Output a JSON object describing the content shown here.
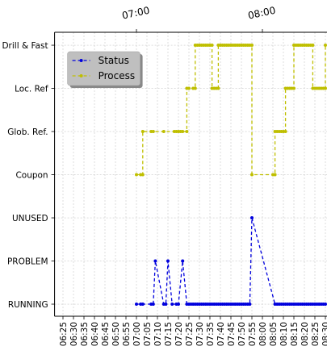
{
  "chart_data": {
    "type": "line",
    "xlim": [
      "06:21",
      "08:30"
    ],
    "xticks": [
      "06:25",
      "06:30",
      "06:35",
      "06:40",
      "06:45",
      "06:50",
      "06:55",
      "07:00",
      "07:05",
      "07:10",
      "07:15",
      "07:20",
      "07:25",
      "07:30",
      "07:35",
      "07:40",
      "07:45",
      "07:50",
      "07:55",
      "08:00",
      "08:05",
      "08:10",
      "08:15",
      "08:20",
      "08:25",
      "08:30"
    ],
    "x2ticks": [
      "07:00",
      "08:00"
    ],
    "ylim": [
      -0.28,
      6.3
    ],
    "yticks": [
      {
        "value": 0,
        "label": "RUNNING"
      },
      {
        "value": 1,
        "label": "PROBLEM"
      },
      {
        "value": 2,
        "label": "UNUSED"
      },
      {
        "value": 3,
        "label": "Coupon"
      },
      {
        "value": 4,
        "label": "Glob. Ref."
      },
      {
        "value": 5,
        "label": "Loc. Ref"
      },
      {
        "value": 6,
        "label": "Drill & Fast"
      }
    ],
    "grid": true,
    "legend": "upper left",
    "series": [
      {
        "name": "Status",
        "color": "#0000dd",
        "x": [
          "07:00",
          "07:02",
          "07:03",
          "07:07",
          "07:08",
          "07:09",
          "07:13",
          "07:14",
          "07:15",
          "07:17",
          "07:19",
          "07:20",
          "07:22",
          "07:24",
          "07:25",
          "07:26",
          "07:27",
          "07:28",
          "07:29",
          "07:30",
          "07:31",
          "07:32",
          "07:33",
          "07:34",
          "07:35",
          "07:36",
          "07:37",
          "07:38",
          "07:39",
          "07:40",
          "07:41",
          "07:42",
          "07:43",
          "07:44",
          "07:45",
          "07:46",
          "07:47",
          "07:48",
          "07:49",
          "07:50",
          "07:51",
          "07:52",
          "07:53",
          "07:54",
          "07:55",
          "08:06",
          "08:07",
          "08:08",
          "08:09",
          "08:10",
          "08:11",
          "08:12",
          "08:13",
          "08:14",
          "08:15",
          "08:16",
          "08:17",
          "08:18",
          "08:19",
          "08:20",
          "08:21",
          "08:22",
          "08:23",
          "08:24",
          "08:25",
          "08:26",
          "08:27",
          "08:28",
          "08:29",
          "08:30"
        ],
        "values": [
          0,
          0,
          0,
          0,
          0,
          1,
          0,
          0,
          1,
          0,
          0,
          0,
          1,
          0,
          0,
          0,
          0,
          0,
          0,
          0,
          0,
          0,
          0,
          0,
          0,
          0,
          0,
          0,
          0,
          0,
          0,
          0,
          0,
          0,
          0,
          0,
          0,
          0,
          0,
          0,
          0,
          0,
          0,
          0,
          2,
          0,
          0,
          0,
          0,
          0,
          0,
          0,
          0,
          0,
          0,
          0,
          0,
          0,
          0,
          0,
          0,
          0,
          0,
          0,
          0,
          0,
          0,
          0,
          0,
          0
        ]
      },
      {
        "name": "Process",
        "color": "#bfbf00",
        "x": [
          "07:00",
          "07:02",
          "07:03",
          "07:03",
          "07:07",
          "07:08",
          "07:13",
          "07:18",
          "07:19",
          "07:20",
          "07:21",
          "07:22",
          "07:24",
          "07:24",
          "07:25",
          "07:27",
          "07:28",
          "07:28",
          "07:29",
          "07:30",
          "07:31",
          "07:32",
          "07:33",
          "07:34",
          "07:35",
          "07:36",
          "07:36",
          "07:37",
          "07:38",
          "07:39",
          "07:39",
          "07:40",
          "07:41",
          "07:42",
          "07:43",
          "07:44",
          "07:45",
          "07:46",
          "07:47",
          "07:48",
          "07:49",
          "07:50",
          "07:51",
          "07:52",
          "07:53",
          "07:54",
          "07:55",
          "07:55",
          "08:05",
          "08:06",
          "08:06",
          "08:07",
          "08:08",
          "08:09",
          "08:10",
          "08:11",
          "08:11",
          "08:12",
          "08:13",
          "08:14",
          "08:15",
          "08:15",
          "08:16",
          "08:17",
          "08:18",
          "08:19",
          "08:20",
          "08:21",
          "08:22",
          "08:23",
          "08:24",
          "08:24",
          "08:25",
          "08:26",
          "08:27",
          "08:28",
          "08:29",
          "08:30",
          "08:30"
        ],
        "values": [
          3,
          3,
          3,
          4,
          4,
          4,
          4,
          4,
          4,
          4,
          4,
          4,
          4,
          5,
          5,
          5,
          5,
          6,
          6,
          6,
          6,
          6,
          6,
          6,
          6,
          6,
          5,
          5,
          5,
          5,
          6,
          6,
          6,
          6,
          6,
          6,
          6,
          6,
          6,
          6,
          6,
          6,
          6,
          6,
          6,
          6,
          6,
          3,
          3,
          3,
          4,
          4,
          4,
          4,
          4,
          4,
          5,
          5,
          5,
          5,
          5,
          6,
          6,
          6,
          6,
          6,
          6,
          6,
          6,
          6,
          6,
          5,
          5,
          5,
          5,
          5,
          5,
          5,
          6
        ]
      }
    ]
  }
}
